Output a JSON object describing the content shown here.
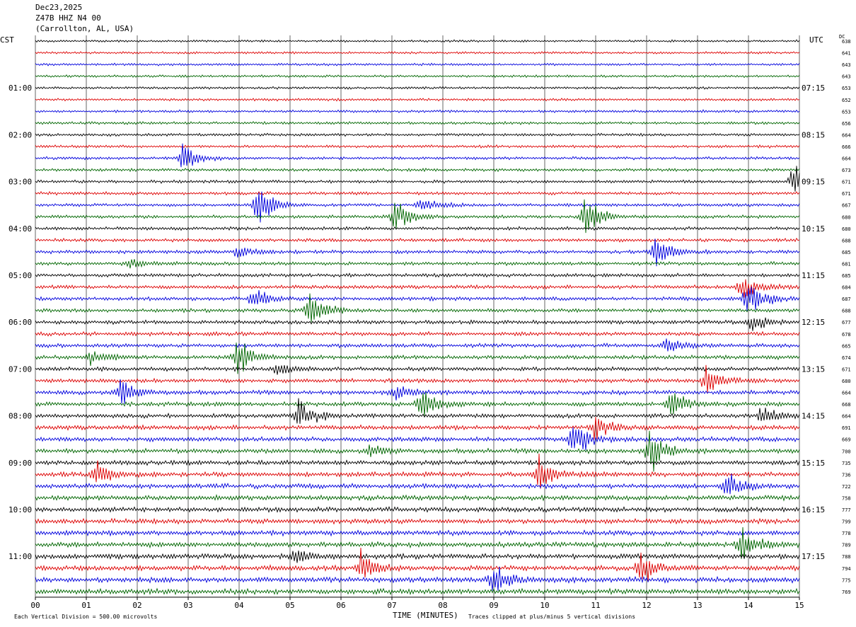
{
  "header": {
    "date": "Dec23,2025",
    "station": "Z47B HHZ N4 00",
    "location": "(Carrollton, AL, USA)",
    "left_tz": "CST",
    "right_tz": "UTC",
    "dc_label": "DC"
  },
  "footer": {
    "xlabel": "TIME (MINUTES)",
    "scale_note": "Each Vertical Division =  500.00 microvolts",
    "clip_note": "Traces clipped at plus/minus 5 vertical divisions"
  },
  "colors": {
    "trace_cycle": [
      "#000000",
      "#dd0000",
      "#0000dd",
      "#006600"
    ],
    "grid": "#000000"
  },
  "chart_data": {
    "type": "line",
    "x_range": [
      0,
      15
    ],
    "x_ticks": [
      "00",
      "01",
      "02",
      "03",
      "04",
      "05",
      "06",
      "07",
      "08",
      "09",
      "10",
      "11",
      "12",
      "13",
      "14",
      "15"
    ],
    "grid": "vertical lines every minute",
    "left_hour_labels": [
      "01:00",
      "02:00",
      "03:00",
      "04:00",
      "05:00",
      "06:00",
      "07:00",
      "08:00",
      "09:00",
      "10:00",
      "11:00"
    ],
    "right_hour_labels": [
      "07:15",
      "08:15",
      "09:15",
      "10:15",
      "11:15",
      "12:15",
      "13:15",
      "14:15",
      "15:15",
      "16:15",
      "17:15"
    ],
    "hour_label_every_n_traces": 4,
    "dc_offsets": [
      638,
      641,
      643,
      643,
      653,
      652,
      653,
      656,
      664,
      666,
      664,
      673,
      671,
      671,
      667,
      680,
      680,
      688,
      685,
      681,
      685,
      684,
      687,
      688,
      677,
      678,
      665,
      674,
      671,
      680,
      664,
      668,
      664,
      691,
      669,
      700,
      735,
      736,
      722,
      758,
      777,
      799,
      778,
      789,
      788,
      794,
      775,
      769
    ],
    "events": [
      {
        "trace": 10,
        "minute": 2.9,
        "amp": 2.2
      },
      {
        "trace": 12,
        "minute": 14.9,
        "amp": 3.0
      },
      {
        "trace": 14,
        "minute": 4.4,
        "amp": 3.0
      },
      {
        "trace": 14,
        "minute": 7.6,
        "amp": 1.2
      },
      {
        "trace": 15,
        "minute": 7.1,
        "amp": 2.4
      },
      {
        "trace": 15,
        "minute": 10.8,
        "amp": 3.0
      },
      {
        "trace": 18,
        "minute": 4.0,
        "amp": 1.0
      },
      {
        "trace": 18,
        "minute": 12.2,
        "amp": 3.0
      },
      {
        "trace": 19,
        "minute": 1.9,
        "amp": 0.8
      },
      {
        "trace": 21,
        "minute": 13.9,
        "amp": 2.0
      },
      {
        "trace": 22,
        "minute": 4.3,
        "amp": 1.6
      },
      {
        "trace": 22,
        "minute": 14.0,
        "amp": 3.0
      },
      {
        "trace": 23,
        "minute": 5.4,
        "amp": 3.0
      },
      {
        "trace": 24,
        "minute": 14.1,
        "amp": 1.4
      },
      {
        "trace": 26,
        "minute": 12.4,
        "amp": 1.4
      },
      {
        "trace": 27,
        "minute": 1.1,
        "amp": 1.2
      },
      {
        "trace": 27,
        "minute": 4.0,
        "amp": 3.0
      },
      {
        "trace": 28,
        "minute": 4.8,
        "amp": 1.0
      },
      {
        "trace": 29,
        "minute": 13.2,
        "amp": 2.4
      },
      {
        "trace": 30,
        "minute": 1.7,
        "amp": 2.0
      },
      {
        "trace": 30,
        "minute": 7.1,
        "amp": 1.2
      },
      {
        "trace": 31,
        "minute": 7.6,
        "amp": 2.4
      },
      {
        "trace": 31,
        "minute": 12.5,
        "amp": 2.2
      },
      {
        "trace": 32,
        "minute": 5.2,
        "amp": 2.4
      },
      {
        "trace": 32,
        "minute": 14.3,
        "amp": 1.4
      },
      {
        "trace": 33,
        "minute": 11.0,
        "amp": 1.8
      },
      {
        "trace": 34,
        "minute": 10.6,
        "amp": 3.0
      },
      {
        "trace": 35,
        "minute": 12.1,
        "amp": 3.0
      },
      {
        "trace": 35,
        "minute": 6.6,
        "amp": 0.8
      },
      {
        "trace": 37,
        "minute": 1.2,
        "amp": 2.0
      },
      {
        "trace": 37,
        "minute": 9.9,
        "amp": 2.6
      },
      {
        "trace": 38,
        "minute": 13.6,
        "amp": 2.0
      },
      {
        "trace": 43,
        "minute": 13.9,
        "amp": 2.4
      },
      {
        "trace": 44,
        "minute": 5.1,
        "amp": 1.2
      },
      {
        "trace": 45,
        "minute": 6.4,
        "amp": 2.6
      },
      {
        "trace": 45,
        "minute": 11.9,
        "amp": 2.6
      },
      {
        "trace": 46,
        "minute": 9.0,
        "amp": 2.0
      }
    ]
  }
}
